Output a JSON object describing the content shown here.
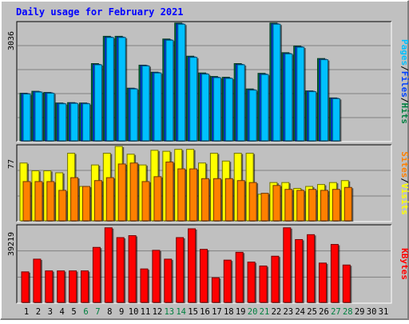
{
  "title": "Daily usage for February 2021",
  "colors": {
    "background": "#c0c0c0",
    "plot_background": "#c0c0c0",
    "title": "#0000ff",
    "hits": "#008040",
    "files": "#0040ff",
    "pages": "#00c0ff",
    "visits": "#ffff00",
    "sites": "#ff8000",
    "kbytes": "#ff0000",
    "weekend_label": "#008040",
    "weekday_label": "#000000"
  },
  "chart_data": [
    {
      "type": "bar",
      "panel": "hits-files-pages",
      "ymax_label": "3036",
      "right_label_parts": [
        "Pages",
        "/",
        "Files",
        "/",
        "Hits"
      ],
      "ylim": [
        0,
        3036
      ],
      "categories": [
        "1",
        "2",
        "3",
        "4",
        "5",
        "6",
        "7",
        "8",
        "9",
        "10",
        "11",
        "12",
        "13",
        "14",
        "15",
        "16",
        "17",
        "18",
        "19",
        "20",
        "21",
        "22",
        "23",
        "24",
        "25",
        "26",
        "27",
        "28"
      ],
      "series": [
        {
          "name": "Hits",
          "values": [
            1240,
            1290,
            1260,
            990,
            1000,
            990,
            2000,
            2700,
            2700,
            1370,
            1960,
            1780,
            2630,
            3040,
            2190,
            1760,
            1670,
            1650,
            2000,
            1350,
            1750,
            3040,
            2280,
            2450,
            1300,
            2130,
            1120,
            0
          ]
        },
        {
          "name": "Files",
          "values": [
            1230,
            1280,
            1250,
            980,
            990,
            980,
            1980,
            2680,
            2680,
            1360,
            1950,
            1770,
            2610,
            3020,
            2170,
            1740,
            1650,
            1630,
            1980,
            1330,
            1730,
            3020,
            2260,
            2430,
            1290,
            2110,
            1110,
            0
          ]
        },
        {
          "name": "Pages",
          "values": [
            1220,
            1270,
            1240,
            970,
            980,
            970,
            1970,
            2670,
            2670,
            1350,
            1940,
            1760,
            2600,
            3010,
            2160,
            1730,
            1640,
            1620,
            1970,
            1320,
            1720,
            3010,
            2250,
            2420,
            1280,
            2100,
            1100,
            0
          ]
        }
      ]
    },
    {
      "type": "bar",
      "panel": "visits-sites",
      "ymax_label": "77",
      "right_label_parts": [
        "Sites",
        "/",
        "Visits"
      ],
      "ylim": [
        0,
        77
      ],
      "categories": [
        "1",
        "2",
        "3",
        "4",
        "5",
        "6",
        "7",
        "8",
        "9",
        "10",
        "11",
        "12",
        "13",
        "14",
        "15",
        "16",
        "17",
        "18",
        "19",
        "20",
        "21",
        "22",
        "23",
        "24",
        "25",
        "26",
        "27",
        "28"
      ],
      "series": [
        {
          "name": "Visits",
          "values": [
            60,
            52,
            52,
            50,
            70,
            36,
            58,
            70,
            77,
            69,
            58,
            73,
            72,
            74,
            74,
            60,
            70,
            62,
            70,
            70,
            28,
            40,
            40,
            34,
            36,
            38,
            40,
            42
          ]
        },
        {
          "name": "Sites",
          "values": [
            41,
            41,
            41,
            32,
            45,
            36,
            42,
            45,
            59,
            60,
            41,
            46,
            61,
            54,
            54,
            44,
            44,
            44,
            42,
            40,
            29,
            37,
            33,
            32,
            33,
            32,
            33,
            35
          ]
        }
      ]
    },
    {
      "type": "bar",
      "panel": "kbytes",
      "ymax_label": "39219",
      "right_label_parts": [
        "KBytes"
      ],
      "ylim": [
        0,
        39219
      ],
      "categories": [
        "1",
        "2",
        "3",
        "4",
        "5",
        "6",
        "7",
        "8",
        "9",
        "10",
        "11",
        "12",
        "13",
        "14",
        "15",
        "16",
        "17",
        "18",
        "19",
        "20",
        "21",
        "22",
        "23",
        "24",
        "25",
        "26",
        "27",
        "28"
      ],
      "series": [
        {
          "name": "KBytes",
          "values": [
            16000,
            22500,
            16500,
            16500,
            16500,
            16500,
            28500,
            38500,
            33500,
            34500,
            17500,
            27000,
            22500,
            33500,
            38000,
            27500,
            13000,
            22000,
            26000,
            21000,
            19000,
            24000,
            38500,
            32500,
            35000,
            20500,
            30000,
            19500
          ]
        }
      ]
    }
  ],
  "x_axis": {
    "days": [
      "1",
      "2",
      "3",
      "4",
      "5",
      "6",
      "7",
      "8",
      "9",
      "10",
      "11",
      "12",
      "13",
      "14",
      "15",
      "16",
      "17",
      "18",
      "19",
      "20",
      "21",
      "22",
      "23",
      "24",
      "25",
      "26",
      "27",
      "28",
      "29",
      "30",
      "31"
    ],
    "weekend_days": [
      "6",
      "7",
      "13",
      "14",
      "20",
      "21",
      "27",
      "28"
    ]
  }
}
